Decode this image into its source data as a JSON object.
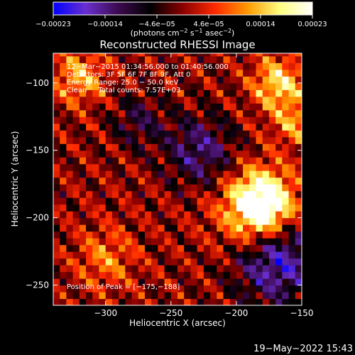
{
  "chart_data": {
    "type": "heatmap",
    "title": "Reconstructed RHESSI Image",
    "xlabel": "Heliocentric X (arcsec)",
    "ylabel": "Heliocentric Y (arcsec)",
    "xlim": [
      -340,
      -150
    ],
    "ylim": [
      -265,
      -78
    ],
    "x_ticks": [
      -300,
      -250,
      -200,
      -150
    ],
    "x_tick_labels": [
      "−300",
      "−250",
      "−200",
      "−150"
    ],
    "y_ticks": [
      -100,
      -150,
      -200,
      -250
    ],
    "y_tick_labels": [
      "−100",
      "−150",
      "−200",
      "−250"
    ],
    "colorbar": {
      "range": [
        -0.00023,
        0.00023
      ],
      "tick_labels": [
        "−0.00023",
        "−0.00014",
        "−4.6e−05",
        "4.6e−05",
        "0.00014",
        "0.00023"
      ],
      "units_prefix": "(photons cm",
      "units_e1": "−2",
      "units_mid": " s",
      "units_e2": "−1",
      "units_mid2": " asec",
      "units_e3": "−2",
      "units_suffix": ")",
      "colors": [
        "#0000ff",
        "#6a2fd0",
        "#3d0a50",
        "#000000",
        "#8a0000",
        "#ff2a00",
        "#ff9a00",
        "#ffff80",
        "#ffffff"
      ]
    },
    "annotations": [
      "12−Mar−2015 01:34:56.000 to 01:40:56.000",
      "Detectors: 3F 5F 6F 7F 8F 9F, Att 0",
      "Energy Range: 25.0 − 50.0 keV",
      "Clean     Total counts: 7.57E+03"
    ],
    "peak_label": "Position of Peak = [−175,−188]",
    "peak": [
      -175,
      -188
    ],
    "sources": [
      {
        "x": -180,
        "y": -188,
        "amp": 1.0,
        "sigma": 16
      },
      {
        "x": -185,
        "y": -200,
        "amp": 0.55,
        "sigma": 22
      },
      {
        "x": -168,
        "y": -100,
        "amp": 0.7,
        "sigma": 14
      },
      {
        "x": -155,
        "y": -130,
        "amp": 0.45,
        "sigma": 12
      },
      {
        "x": -320,
        "y": -95,
        "amp": 0.55,
        "sigma": 14
      },
      {
        "x": -300,
        "y": -230,
        "amp": 0.4,
        "sigma": 16
      },
      {
        "x": -228,
        "y": -150,
        "amp": -0.55,
        "sigma": 18
      },
      {
        "x": -170,
        "y": -230,
        "amp": -0.85,
        "sigma": 22
      },
      {
        "x": -275,
        "y": -128,
        "amp": -0.35,
        "sigma": 14
      }
    ]
  },
  "footer": {
    "date": "19−May−2022 15:43"
  }
}
